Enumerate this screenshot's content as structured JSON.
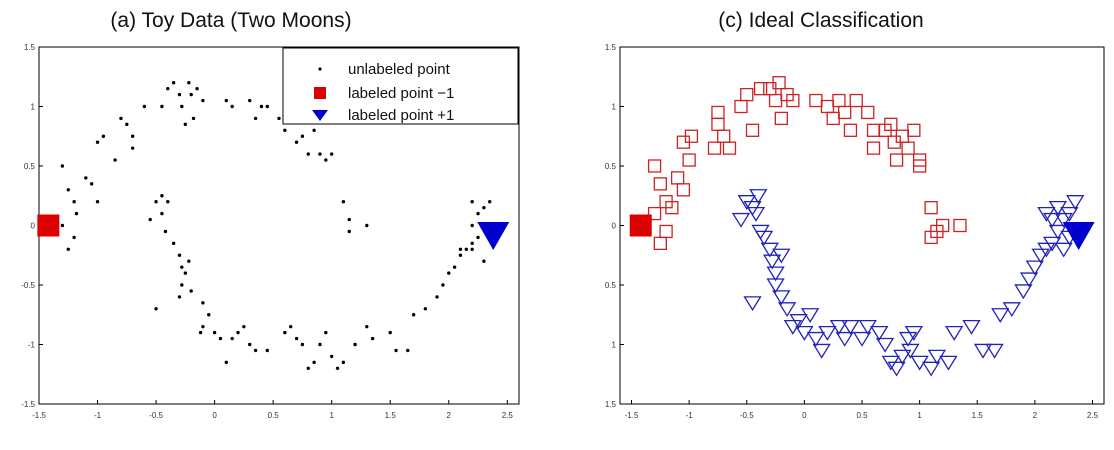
{
  "chart_data": [
    {
      "type": "scatter",
      "title": "(a) Toy Data (Two Moons)",
      "xlim": [
        -1.5,
        2.6
      ],
      "ylim": [
        -1.5,
        1.5
      ],
      "xticks": [
        "-1.5",
        "-1",
        "-0.5",
        "0",
        "0.5",
        "1",
        "1.5",
        "2",
        "2.5"
      ],
      "yticks": [
        "1.5",
        "1",
        "0.5",
        "0",
        "-0.5",
        "-1",
        "-1.5"
      ],
      "legend": {
        "position": "top-right",
        "entries": [
          {
            "label": "unlabeled point",
            "marker": "dot",
            "color": "#000000"
          },
          {
            "label": "labeled point  −1",
            "marker": "square",
            "color": "#dd0000"
          },
          {
            "label": "labeled point +1",
            "marker": "triangle-down",
            "color": "#0000cc"
          }
        ]
      },
      "series": [
        {
          "marker": "dot",
          "color": "#000000",
          "points": [
            [
              -1.3,
              0.5
            ],
            [
              -1.25,
              0.3
            ],
            [
              -1.2,
              0.2
            ],
            [
              -1.18,
              0.1
            ],
            [
              -1.3,
              0.0
            ],
            [
              -1.2,
              -0.1
            ],
            [
              -1.25,
              -0.2
            ],
            [
              -1.1,
              0.4
            ],
            [
              -1.05,
              0.35
            ],
            [
              -1.0,
              0.7
            ],
            [
              -1.0,
              0.2
            ],
            [
              -0.95,
              0.75
            ],
            [
              -0.85,
              0.55
            ],
            [
              -0.8,
              0.9
            ],
            [
              -0.75,
              0.85
            ],
            [
              -0.7,
              0.75
            ],
            [
              -0.7,
              0.65
            ],
            [
              -0.6,
              1.0
            ],
            [
              -0.45,
              1.0
            ],
            [
              -0.4,
              1.15
            ],
            [
              -0.35,
              1.2
            ],
            [
              -0.3,
              1.1
            ],
            [
              -0.28,
              1.0
            ],
            [
              -0.25,
              0.85
            ],
            [
              -0.22,
              1.2
            ],
            [
              -0.2,
              1.1
            ],
            [
              -0.18,
              0.9
            ],
            [
              -0.15,
              1.15
            ],
            [
              -0.1,
              1.05
            ],
            [
              0.1,
              1.05
            ],
            [
              0.15,
              1.0
            ],
            [
              0.3,
              1.05
            ],
            [
              0.35,
              0.9
            ],
            [
              0.4,
              1.0
            ],
            [
              0.45,
              1.0
            ],
            [
              0.55,
              0.9
            ],
            [
              0.6,
              0.8
            ],
            [
              0.7,
              0.7
            ],
            [
              0.75,
              0.75
            ],
            [
              0.8,
              0.6
            ],
            [
              0.85,
              0.8
            ],
            [
              0.9,
              0.6
            ],
            [
              0.95,
              0.55
            ],
            [
              1.0,
              0.6
            ],
            [
              1.1,
              0.2
            ],
            [
              1.15,
              0.05
            ],
            [
              1.15,
              -0.05
            ],
            [
              1.3,
              0.0
            ],
            [
              -0.5,
              0.2
            ],
            [
              -0.45,
              0.25
            ],
            [
              -0.4,
              0.2
            ],
            [
              -0.45,
              0.1
            ],
            [
              -0.55,
              0.05
            ],
            [
              -0.42,
              -0.05
            ],
            [
              -0.35,
              -0.15
            ],
            [
              -0.3,
              -0.25
            ],
            [
              -0.28,
              -0.35
            ],
            [
              -0.25,
              -0.4
            ],
            [
              -0.22,
              -0.3
            ],
            [
              -0.28,
              -0.5
            ],
            [
              -0.3,
              -0.6
            ],
            [
              -0.2,
              -0.55
            ],
            [
              -0.1,
              -0.65
            ],
            [
              -0.05,
              -0.75
            ],
            [
              -0.1,
              -0.85
            ],
            [
              -0.12,
              -0.9
            ],
            [
              -0.5,
              -0.7
            ],
            [
              0.0,
              -0.9
            ],
            [
              0.05,
              -0.95
            ],
            [
              0.15,
              -0.95
            ],
            [
              0.2,
              -0.9
            ],
            [
              0.25,
              -0.85
            ],
            [
              0.1,
              -1.15
            ],
            [
              0.3,
              -1.0
            ],
            [
              0.35,
              -1.05
            ],
            [
              0.45,
              -1.05
            ],
            [
              0.6,
              -0.9
            ],
            [
              0.65,
              -0.85
            ],
            [
              0.7,
              -0.95
            ],
            [
              0.75,
              -1.0
            ],
            [
              0.8,
              -1.2
            ],
            [
              0.85,
              -1.15
            ],
            [
              0.9,
              -1.0
            ],
            [
              0.95,
              -0.9
            ],
            [
              1.0,
              -1.1
            ],
            [
              1.05,
              -1.2
            ],
            [
              1.1,
              -1.15
            ],
            [
              1.2,
              -1.0
            ],
            [
              1.3,
              -0.85
            ],
            [
              1.35,
              -0.95
            ],
            [
              1.5,
              -0.9
            ],
            [
              1.55,
              -1.05
            ],
            [
              1.65,
              -1.05
            ],
            [
              1.7,
              -0.75
            ],
            [
              1.8,
              -0.7
            ],
            [
              1.9,
              -0.6
            ],
            [
              1.95,
              -0.5
            ],
            [
              2.0,
              -0.4
            ],
            [
              2.05,
              -0.35
            ],
            [
              2.1,
              -0.25
            ],
            [
              2.15,
              -0.2
            ],
            [
              2.2,
              -0.15
            ],
            [
              2.25,
              -0.1
            ],
            [
              2.2,
              0.0
            ],
            [
              2.25,
              0.1
            ],
            [
              2.3,
              0.15
            ],
            [
              2.35,
              0.2
            ],
            [
              2.2,
              0.2
            ],
            [
              2.2,
              -0.2
            ],
            [
              2.1,
              -0.2
            ],
            [
              2.3,
              -0.3
            ]
          ]
        },
        {
          "marker": "square",
          "color": "#dd0000",
          "label": "labeled point  −1",
          "points": [
            [
              -1.42,
              0.0
            ]
          ]
        },
        {
          "marker": "triangle-down",
          "color": "#0000cc",
          "label": "labeled point +1",
          "points": [
            [
              2.38,
              -0.08
            ]
          ]
        }
      ]
    },
    {
      "type": "scatter",
      "title": "(c) Ideal Classification",
      "xlim": [
        -1.6,
        2.6
      ],
      "ylim": [
        -1.5,
        1.5
      ],
      "xticks": [
        "-1.5",
        "-1",
        "-0.5",
        "0",
        "0.5",
        "1",
        "1.5",
        "2",
        "2.5"
      ],
      "yticks": [
        "1.5",
        "1",
        "0.5",
        "0",
        "0.5",
        "1",
        "1.5"
      ],
      "series": [
        {
          "marker": "open-square",
          "color": "#cc2222",
          "points": [
            [
              -1.3,
              0.5
            ],
            [
              -1.25,
              0.35
            ],
            [
              -1.2,
              0.2
            ],
            [
              -1.3,
              0.1
            ],
            [
              -1.2,
              -0.05
            ],
            [
              -1.25,
              -0.15
            ],
            [
              -1.15,
              0.15
            ],
            [
              -1.05,
              0.3
            ],
            [
              -1.1,
              0.4
            ],
            [
              -1.0,
              0.55
            ],
            [
              -1.05,
              0.7
            ],
            [
              -0.98,
              0.75
            ],
            [
              -0.75,
              0.85
            ],
            [
              -0.7,
              0.75
            ],
            [
              -0.65,
              0.65
            ],
            [
              -0.78,
              0.65
            ],
            [
              -0.75,
              0.95
            ],
            [
              -0.55,
              1.0
            ],
            [
              -0.5,
              1.1
            ],
            [
              -0.45,
              0.8
            ],
            [
              -0.38,
              1.15
            ],
            [
              -0.3,
              1.15
            ],
            [
              -0.25,
              1.05
            ],
            [
              -0.22,
              1.2
            ],
            [
              -0.15,
              1.1
            ],
            [
              -0.2,
              0.9
            ],
            [
              -0.1,
              1.05
            ],
            [
              0.1,
              1.05
            ],
            [
              0.2,
              1.0
            ],
            [
              0.25,
              0.9
            ],
            [
              0.3,
              1.05
            ],
            [
              0.35,
              0.95
            ],
            [
              0.45,
              1.05
            ],
            [
              0.4,
              0.8
            ],
            [
              0.55,
              0.95
            ],
            [
              0.6,
              0.8
            ],
            [
              0.6,
              0.65
            ],
            [
              0.7,
              0.8
            ],
            [
              0.75,
              0.85
            ],
            [
              0.78,
              0.7
            ],
            [
              0.85,
              0.75
            ],
            [
              0.8,
              0.55
            ],
            [
              0.9,
              0.65
            ],
            [
              0.95,
              0.8
            ],
            [
              1.0,
              0.55
            ],
            [
              1.0,
              0.5
            ],
            [
              1.1,
              0.15
            ],
            [
              1.15,
              -0.05
            ],
            [
              1.1,
              -0.1
            ],
            [
              1.2,
              0.0
            ],
            [
              1.35,
              0.0
            ]
          ]
        },
        {
          "marker": "open-triangle-down",
          "color": "#2222bb",
          "points": [
            [
              -0.55,
              0.05
            ],
            [
              -0.5,
              0.2
            ],
            [
              -0.45,
              0.15
            ],
            [
              -0.4,
              0.25
            ],
            [
              -0.42,
              0.1
            ],
            [
              -0.38,
              -0.05
            ],
            [
              -0.35,
              -0.1
            ],
            [
              -0.3,
              -0.2
            ],
            [
              -0.28,
              -0.3
            ],
            [
              -0.25,
              -0.4
            ],
            [
              -0.2,
              -0.25
            ],
            [
              -0.25,
              -0.5
            ],
            [
              -0.2,
              -0.6
            ],
            [
              -0.45,
              -0.65
            ],
            [
              -0.15,
              -0.7
            ],
            [
              -0.1,
              -0.85
            ],
            [
              -0.05,
              -0.8
            ],
            [
              0.0,
              -0.9
            ],
            [
              0.05,
              -0.75
            ],
            [
              0.1,
              -0.95
            ],
            [
              0.15,
              -1.05
            ],
            [
              0.2,
              -0.9
            ],
            [
              0.3,
              -0.85
            ],
            [
              0.35,
              -0.95
            ],
            [
              0.4,
              -0.85
            ],
            [
              0.5,
              -0.95
            ],
            [
              0.55,
              -0.85
            ],
            [
              0.65,
              -0.9
            ],
            [
              0.7,
              -1.0
            ],
            [
              0.75,
              -1.15
            ],
            [
              0.8,
              -1.2
            ],
            [
              0.85,
              -1.1
            ],
            [
              0.9,
              -0.95
            ],
            [
              0.95,
              -0.9
            ],
            [
              0.92,
              -1.05
            ],
            [
              1.0,
              -1.15
            ],
            [
              1.1,
              -1.2
            ],
            [
              1.15,
              -1.1
            ],
            [
              1.25,
              -1.15
            ],
            [
              1.3,
              -0.9
            ],
            [
              1.45,
              -0.85
            ],
            [
              1.55,
              -1.05
            ],
            [
              1.65,
              -1.05
            ],
            [
              1.7,
              -0.75
            ],
            [
              1.8,
              -0.7
            ],
            [
              1.9,
              -0.55
            ],
            [
              1.95,
              -0.45
            ],
            [
              2.0,
              -0.35
            ],
            [
              2.05,
              -0.25
            ],
            [
              2.1,
              -0.2
            ],
            [
              2.15,
              -0.15
            ],
            [
              2.2,
              -0.05
            ],
            [
              2.25,
              0.05
            ],
            [
              2.3,
              0.1
            ],
            [
              2.2,
              0.15
            ],
            [
              2.25,
              -0.2
            ],
            [
              2.3,
              -0.1
            ],
            [
              2.35,
              0.2
            ],
            [
              2.15,
              0.05
            ],
            [
              2.1,
              0.1
            ]
          ]
        },
        {
          "marker": "square",
          "color": "#dd0000",
          "points": [
            [
              -1.42,
              0.0
            ]
          ]
        },
        {
          "marker": "triangle-down",
          "color": "#0000cc",
          "points": [
            [
              2.38,
              -0.08
            ]
          ]
        }
      ]
    }
  ]
}
